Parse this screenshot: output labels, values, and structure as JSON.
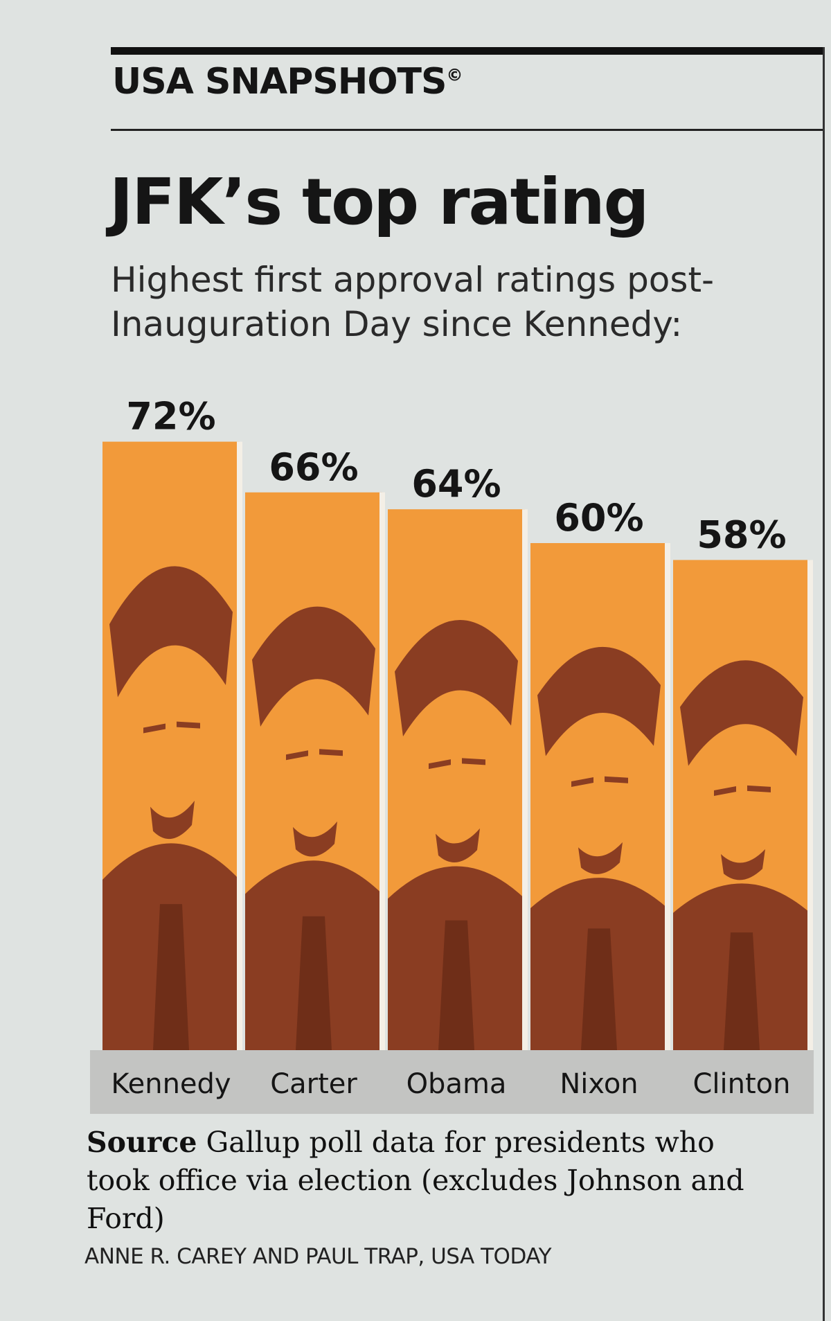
{
  "header": {
    "section": "USA SNAPSHOTS",
    "mark": "©",
    "title": "JFK’s top rating",
    "subtitle": "Highest first approval ratings post-Inauguration Day since Kennedy:"
  },
  "chart_data": {
    "type": "bar",
    "categories": [
      "Kennedy",
      "Carter",
      "Obama",
      "Nixon",
      "Clinton"
    ],
    "values": [
      72,
      66,
      64,
      60,
      58
    ],
    "value_labels": [
      "72%",
      "66%",
      "64%",
      "60%",
      "58%"
    ],
    "unit": "%",
    "title": "JFK’s top rating",
    "xlabel": "",
    "ylabel": "",
    "grid": false,
    "legend": "none"
  },
  "footer": {
    "source_label": "Source",
    "source_text": " Gallup poll data for presidents who took office via election (excludes Johnson and Ford)",
    "credit": "ANNE R. CAREY AND PAUL TRAP, USA TODAY"
  },
  "colors": {
    "bar_fill": "#f29a3a",
    "portrait_ink": "#8a3d22",
    "label_band": "#c3c4c2",
    "text": "#151515"
  },
  "icons": [
    "president-portrait-icon"
  ]
}
